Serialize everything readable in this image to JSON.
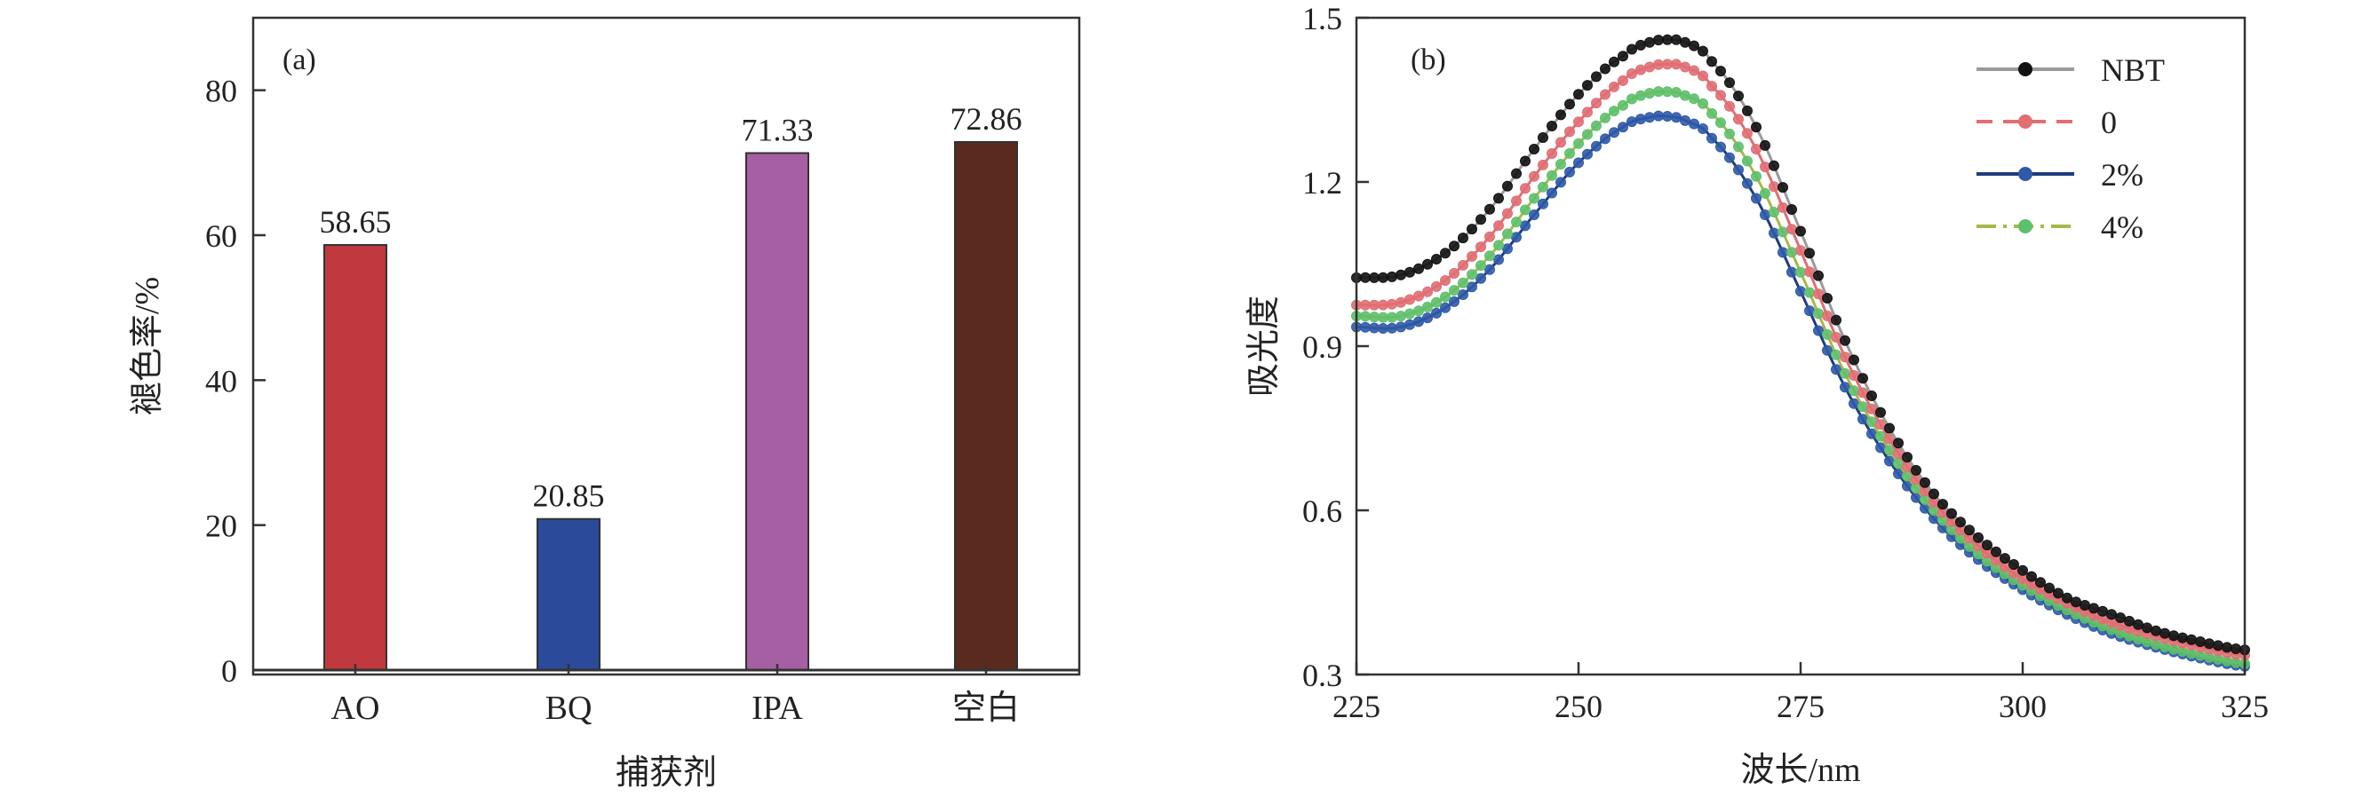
{
  "figure": {
    "panel_a": {
      "panel_label": "(a)",
      "xlabel": "捕获剂",
      "ylabel": "褪色率/%"
    },
    "panel_b": {
      "panel_label": "(b)",
      "xlabel": "波长/nm",
      "ylabel": "吸光度"
    }
  },
  "chart_data": [
    {
      "type": "bar",
      "title": "",
      "panel": "(a)",
      "categories": [
        "AO",
        "BQ",
        "IPA",
        "空白"
      ],
      "values": [
        58.65,
        20.85,
        71.33,
        72.86
      ],
      "data_labels": [
        "58.65",
        "20.85",
        "71.33",
        "72.86"
      ],
      "colors": [
        "#c0393f",
        "#2b4a9a",
        "#a75fa4",
        "#5a2a1e"
      ],
      "xlabel": "捕获剂",
      "ylabel": "褪色率/%",
      "ylim": [
        0,
        90
      ],
      "yticks": [
        0,
        20,
        40,
        60,
        80
      ],
      "grid": false
    },
    {
      "type": "line",
      "title": "",
      "panel": "(b)",
      "xlabel": "波长/nm",
      "ylabel": "吸光度",
      "xlim": [
        225,
        325
      ],
      "ylim": [
        0.3,
        1.5
      ],
      "xticks": [
        225,
        250,
        275,
        300,
        325
      ],
      "yticks": [
        0.3,
        0.6,
        0.9,
        1.2,
        1.5
      ],
      "ytick_labels": [
        "0.3",
        "0.6",
        "0.9",
        "1.2",
        "1.5"
      ],
      "grid": false,
      "legend_position": "top-right",
      "series": [
        {
          "name": "NBT",
          "color": "#111111",
          "line_color": "#9a9a9a",
          "dash": "",
          "x": [
            225,
            230,
            235,
            240,
            245,
            250,
            255,
            258,
            260,
            262,
            265,
            270,
            275,
            280,
            285,
            290,
            295,
            300,
            305,
            310,
            315,
            320,
            325
          ],
          "y": [
            1.025,
            1.03,
            1.07,
            1.15,
            1.26,
            1.36,
            1.43,
            1.455,
            1.46,
            1.455,
            1.42,
            1.3,
            1.11,
            0.91,
            0.75,
            0.63,
            0.55,
            0.49,
            0.44,
            0.41,
            0.38,
            0.36,
            0.345
          ]
        },
        {
          "name": "0",
          "color": "#e06e73",
          "line_color": "#e06e73",
          "dash": "18,12",
          "x": [
            225,
            230,
            235,
            240,
            245,
            250,
            255,
            258,
            260,
            262,
            265,
            270,
            275,
            280,
            285,
            290,
            295,
            300,
            305,
            310,
            315,
            320,
            325
          ],
          "y": [
            0.975,
            0.98,
            1.02,
            1.1,
            1.21,
            1.31,
            1.385,
            1.41,
            1.415,
            1.41,
            1.375,
            1.26,
            1.075,
            0.88,
            0.73,
            0.615,
            0.535,
            0.475,
            0.43,
            0.395,
            0.37,
            0.35,
            0.335
          ]
        },
        {
          "name": "2%",
          "color": "#2f5aa8",
          "line_color": "#1f3a80",
          "dash": "",
          "x": [
            225,
            230,
            235,
            240,
            245,
            250,
            255,
            258,
            260,
            262,
            265,
            270,
            275,
            280,
            285,
            290,
            295,
            300,
            305,
            310,
            315,
            320,
            325
          ],
          "y": [
            0.935,
            0.935,
            0.97,
            1.04,
            1.14,
            1.235,
            1.3,
            1.318,
            1.32,
            1.312,
            1.28,
            1.17,
            1.0,
            0.825,
            0.69,
            0.585,
            0.51,
            0.455,
            0.41,
            0.375,
            0.35,
            0.33,
            0.315
          ]
        },
        {
          "name": "4%",
          "color": "#5dc06a",
          "line_color": "#a8b84a",
          "dash": "22,8,4,8",
          "x": [
            225,
            230,
            235,
            240,
            245,
            250,
            255,
            258,
            260,
            262,
            265,
            270,
            275,
            280,
            285,
            290,
            295,
            300,
            305,
            310,
            315,
            320,
            325
          ],
          "y": [
            0.955,
            0.955,
            0.99,
            1.065,
            1.17,
            1.27,
            1.34,
            1.362,
            1.365,
            1.358,
            1.325,
            1.21,
            1.035,
            0.85,
            0.71,
            0.6,
            0.52,
            0.463,
            0.418,
            0.382,
            0.355,
            0.335,
            0.32
          ]
        }
      ]
    }
  ]
}
